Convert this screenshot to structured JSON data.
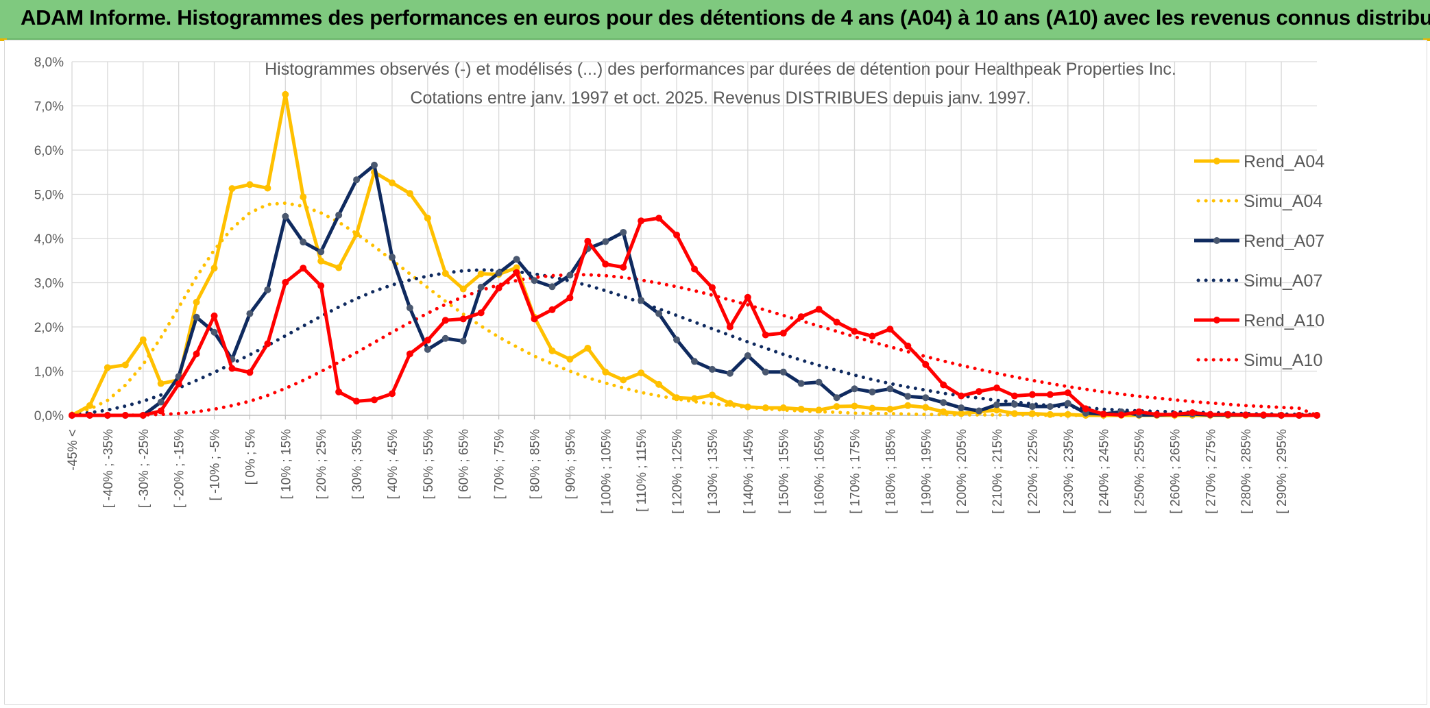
{
  "banner": {
    "title": "ADAM Informe. Histogrammes des performances en euros pour des détentions de 4 ans (A04) à 10 ans (A10) avec les revenus connus distribués"
  },
  "colors": {
    "banner_bg": "#7fc97f",
    "a04": "#ffc000",
    "a07": "#0f2a5f",
    "a07_marker": "#4a5870",
    "a10": "#ff0000",
    "grid": "#d9d9d9",
    "text": "#595959"
  },
  "chart_data": {
    "type": "line",
    "title": "Histogrammes observés (-) et modélisés (...) des performances par durées de détention pour Healthpeak Properties Inc.",
    "subtitle": "Cotations entre janv. 1997 et oct. 2025. Revenus DISTRIBUES depuis janv. 1997.",
    "ylim": [
      0,
      8
    ],
    "yticks": [
      "0,0%",
      "1,0%",
      "2,0%",
      "3,0%",
      "4,0%",
      "5,0%",
      "6,0%",
      "7,0%",
      "8,0%"
    ],
    "grid": true,
    "legend_position": "right",
    "x_tick_labels": [
      "-45% <",
      "[ -40% ; -35%",
      "[ -30% ; -25%",
      "[ -20% ; -15%",
      "[ -10% ; -5%",
      "[ 0% ; 5%",
      "[ 10% ; 15%",
      "[ 20% ; 25%",
      "[ 30% ; 35%",
      "[ 40% ; 45%",
      "[ 50% ; 55%",
      "[ 60% ; 65%",
      "[ 70% ; 75%",
      "[ 80% ; 85%",
      "[ 90% ; 95%",
      "[ 100% ; 105%",
      "[ 110% ; 115%",
      "[ 120% ; 125%",
      "[ 130% ; 135%",
      "[ 140% ; 145%",
      "[ 150% ; 155%",
      "[ 160% ; 165%",
      "[ 170% ; 175%",
      "[ 180% ; 185%",
      "[ 190% ; 195%",
      "[ 200% ; 205%",
      "[ 210% ; 215%",
      "[ 220% ; 225%",
      "[ 230% ; 235%",
      "[ 240% ; 245%",
      "[ 250% ; 255%",
      "[ 260% ; 265%",
      "[ 270% ; 275%",
      "[ 280% ; 285%",
      "[ 290% ; 295%"
    ],
    "series": [
      {
        "name": "Rend_A04",
        "style": "solid",
        "color": "#ffc000",
        "values": [
          0,
          0.22,
          1.08,
          1.14,
          1.71,
          0.72,
          0.8,
          2.56,
          3.33,
          5.13,
          5.22,
          5.14,
          7.26,
          4.94,
          3.49,
          3.34,
          4.1,
          5.5,
          5.26,
          5.02,
          4.46,
          3.21,
          2.86,
          3.2,
          3.19,
          3.34,
          2.22,
          1.46,
          1.27,
          1.52,
          0.98,
          0.8,
          0.96,
          0.7,
          0.4,
          0.38,
          0.46,
          0.27,
          0.19,
          0.17,
          0.17,
          0.14,
          0.12,
          0.2,
          0.21,
          0.16,
          0.14,
          0.22,
          0.18,
          0.08,
          0.04,
          0.08,
          0.12,
          0.04,
          0.04,
          0.02,
          0.02,
          0,
          0,
          0,
          0,
          0,
          0,
          0,
          0,
          0,
          0,
          0,
          0,
          0,
          0
        ]
      },
      {
        "name": "Simu_A04",
        "style": "dotted",
        "color": "#ffc000",
        "values": [
          0.05,
          0.14,
          0.34,
          0.68,
          1.15,
          1.76,
          2.44,
          3.13,
          3.74,
          4.23,
          4.58,
          4.77,
          4.8,
          4.73,
          4.58,
          4.37,
          4.11,
          3.82,
          3.51,
          3.2,
          2.89,
          2.58,
          2.29,
          2.02,
          1.77,
          1.55,
          1.34,
          1.16,
          1.0,
          0.85,
          0.73,
          0.62,
          0.52,
          0.44,
          0.37,
          0.31,
          0.26,
          0.22,
          0.18,
          0.15,
          0.12,
          0.1,
          0.08,
          0.07,
          0.05,
          0.04,
          0.04,
          0.03,
          0.02,
          0.02,
          0.01,
          0.01,
          0.01,
          0.01,
          0.01,
          0,
          0,
          0,
          0,
          0,
          0,
          0,
          0,
          0,
          0,
          0,
          0,
          0,
          0,
          0,
          0
        ]
      },
      {
        "name": "Rend_A07",
        "style": "solid",
        "color": "#0f2a5f",
        "values": [
          0,
          0,
          0,
          0,
          0,
          0.3,
          0.88,
          2.22,
          1.88,
          1.27,
          2.3,
          2.84,
          4.5,
          3.92,
          3.7,
          4.53,
          5.33,
          5.66,
          3.58,
          2.43,
          1.49,
          1.74,
          1.68,
          2.9,
          3.22,
          3.53,
          3.05,
          2.91,
          3.17,
          3.77,
          3.93,
          4.14,
          2.6,
          2.3,
          1.71,
          1.22,
          1.04,
          0.95,
          1.35,
          0.98,
          0.98,
          0.72,
          0.75,
          0.4,
          0.6,
          0.53,
          0.6,
          0.43,
          0.4,
          0.29,
          0.17,
          0.1,
          0.24,
          0.25,
          0.2,
          0.2,
          0.27,
          0.05,
          0.03,
          0.08,
          0.01,
          0.01,
          0.02,
          0.03,
          0.01,
          0.01,
          0.01,
          0,
          0,
          0,
          0
        ]
      },
      {
        "name": "Simu_A07",
        "style": "dotted",
        "color": "#0f2a5f",
        "values": [
          0.02,
          0.06,
          0.12,
          0.21,
          0.32,
          0.46,
          0.62,
          0.79,
          0.97,
          1.17,
          1.37,
          1.58,
          1.8,
          2.02,
          2.24,
          2.45,
          2.64,
          2.81,
          2.95,
          3.06,
          3.15,
          3.22,
          3.27,
          3.29,
          3.28,
          3.25,
          3.2,
          3.13,
          3.04,
          2.94,
          2.82,
          2.69,
          2.55,
          2.41,
          2.26,
          2.11,
          1.96,
          1.81,
          1.66,
          1.52,
          1.38,
          1.25,
          1.13,
          1.02,
          0.91,
          0.81,
          0.72,
          0.64,
          0.57,
          0.5,
          0.44,
          0.39,
          0.34,
          0.3,
          0.26,
          0.22,
          0.19,
          0.17,
          0.14,
          0.12,
          0.1,
          0.09,
          0.08,
          0.07,
          0.06,
          0.05,
          0.04,
          0.03,
          0.03,
          0.02,
          0.02
        ]
      },
      {
        "name": "Rend_A10",
        "style": "solid",
        "color": "#ff0000",
        "values": [
          0,
          0,
          0,
          0,
          0,
          0.1,
          0.71,
          1.39,
          2.25,
          1.06,
          0.97,
          1.62,
          3.01,
          3.33,
          2.93,
          0.53,
          0.32,
          0.35,
          0.49,
          1.39,
          1.7,
          2.15,
          2.18,
          2.32,
          2.88,
          3.23,
          2.18,
          2.39,
          2.66,
          3.94,
          3.42,
          3.35,
          4.4,
          4.46,
          4.08,
          3.31,
          2.89,
          2.0,
          2.67,
          1.82,
          1.86,
          2.23,
          2.4,
          2.11,
          1.9,
          1.79,
          1.95,
          1.57,
          1.15,
          0.69,
          0.44,
          0.54,
          0.62,
          0.44,
          0.47,
          0.47,
          0.51,
          0.15,
          0.03,
          0.01,
          0.08,
          0.02,
          0.02,
          0.06,
          0.02,
          0.02,
          0.01,
          0.01,
          0,
          0,
          0
        ]
      },
      {
        "name": "Simu_A10",
        "style": "dotted",
        "color": "#ff0000",
        "values": [
          0,
          0,
          0,
          0,
          0.01,
          0.02,
          0.04,
          0.08,
          0.14,
          0.22,
          0.32,
          0.45,
          0.61,
          0.79,
          0.99,
          1.2,
          1.42,
          1.65,
          1.88,
          2.1,
          2.31,
          2.51,
          2.68,
          2.83,
          2.95,
          3.05,
          3.12,
          3.16,
          3.18,
          3.18,
          3.16,
          3.12,
          3.06,
          2.99,
          2.91,
          2.82,
          2.72,
          2.61,
          2.5,
          2.38,
          2.26,
          2.14,
          2.02,
          1.9,
          1.78,
          1.66,
          1.55,
          1.44,
          1.33,
          1.23,
          1.13,
          1.04,
          0.95,
          0.87,
          0.79,
          0.72,
          0.65,
          0.59,
          0.53,
          0.48,
          0.43,
          0.39,
          0.35,
          0.31,
          0.28,
          0.25,
          0.22,
          0.2,
          0.18,
          0.16,
          0
        ]
      }
    ]
  }
}
